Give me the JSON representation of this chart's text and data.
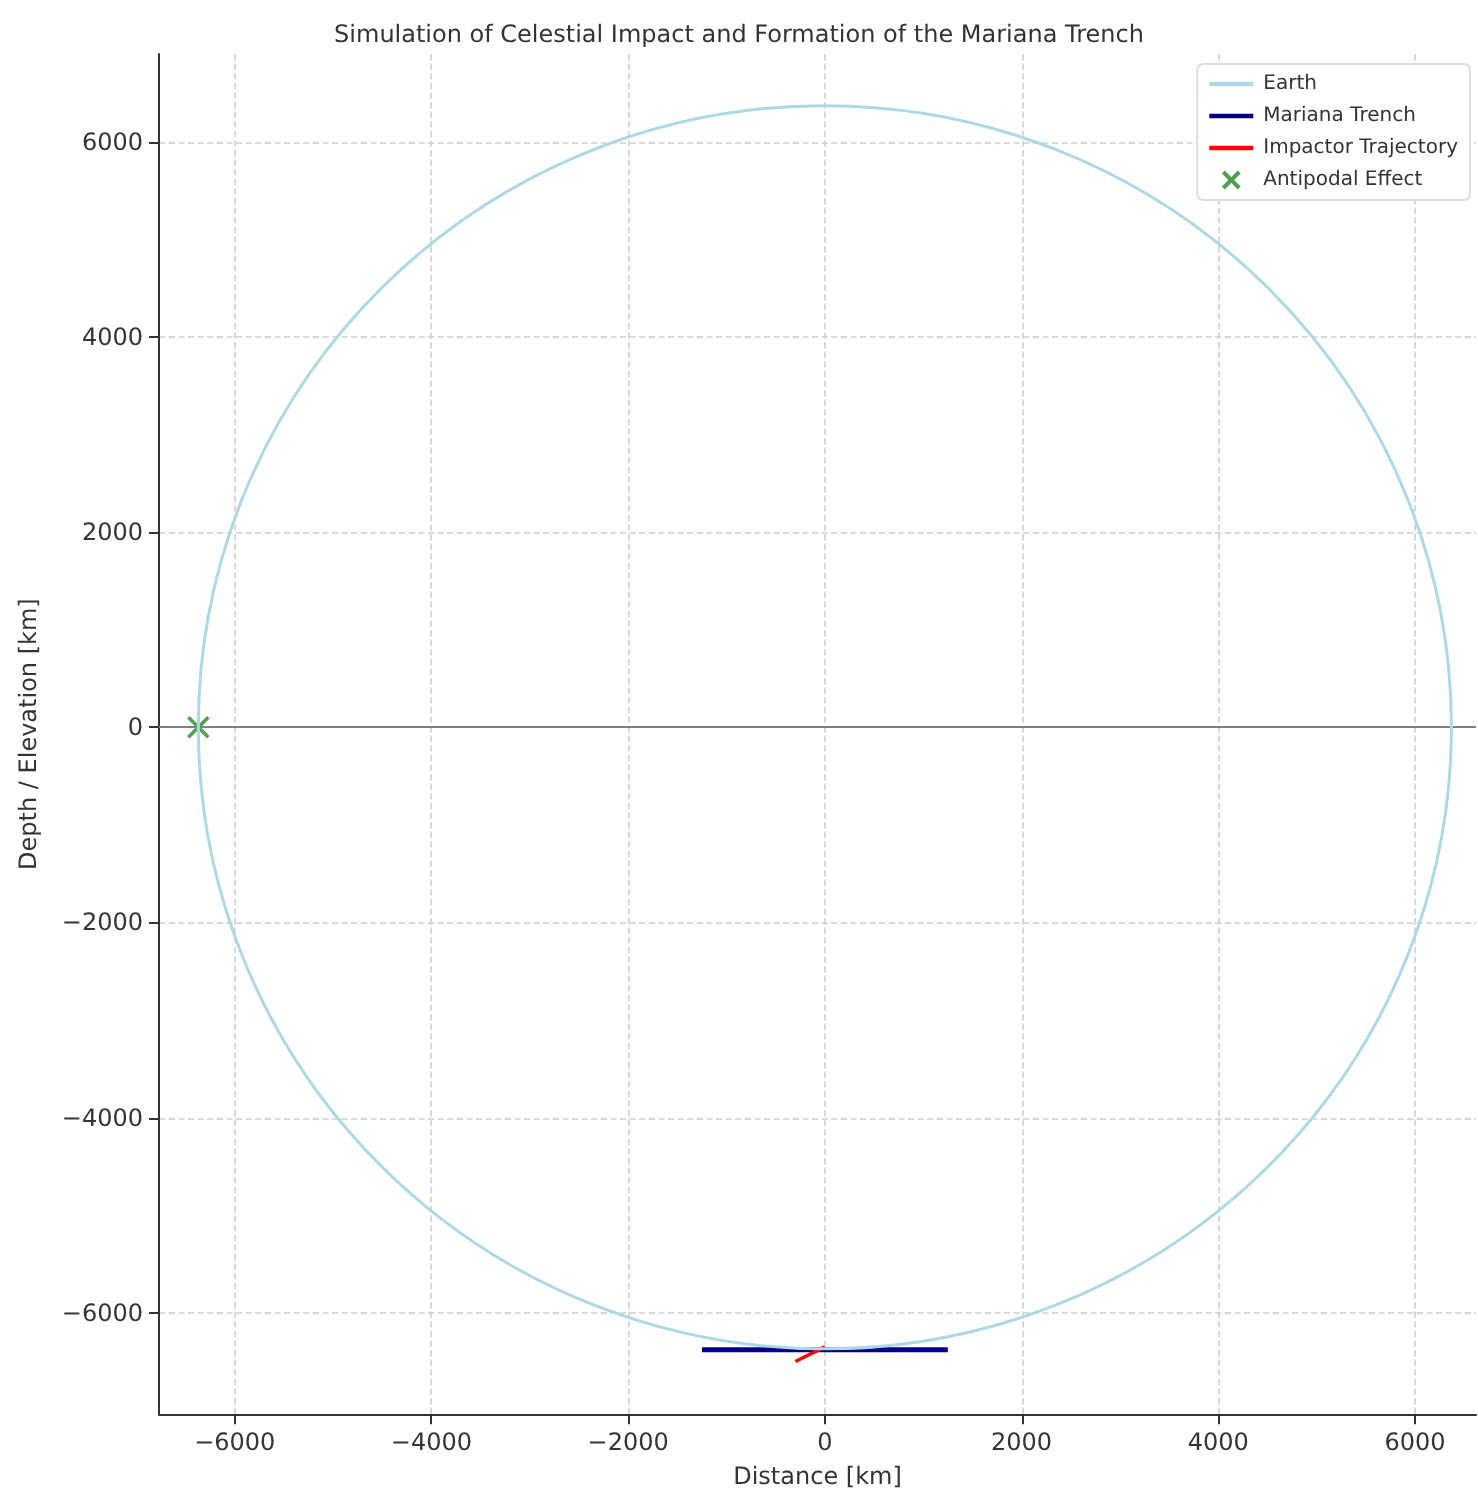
{
  "chart_data": {
    "type": "line",
    "title": "Simulation of Celestial Impact and Formation of the Mariana Trench",
    "xlabel": "Distance [km]",
    "ylabel": "Depth / Elevation [km]",
    "xlim": [
      -6770,
      6620
    ],
    "ylim": [
      -7040,
      6900
    ],
    "xticks": [
      {
        "value": -6000,
        "label": "−6000"
      },
      {
        "value": -4000,
        "label": "−4000"
      },
      {
        "value": -2000,
        "label": "−2000"
      },
      0,
      2000,
      4000,
      6000
    ],
    "yticks": [
      {
        "value": -6000,
        "label": "−6000"
      },
      {
        "value": -4000,
        "label": "−4000"
      },
      {
        "value": -2000,
        "label": "−2000"
      },
      0,
      2000,
      4000,
      6000
    ],
    "grid": true,
    "legend": "top right",
    "ref_lines": [
      {
        "axis": "y",
        "value": 0,
        "color": "#808080"
      }
    ],
    "series": [
      {
        "name": "Earth",
        "color": "#add8e6"
      },
      {
        "name": "Mariana Trench",
        "color": "#00008b",
        "x": [
          -1250,
          1250
        ],
        "values": [
          -6380,
          -6380
        ]
      },
      {
        "name": "Impactor Trajectory",
        "color": "#ff0000",
        "x": [
          -300,
          0
        ],
        "values": [
          -6500,
          -6350
        ]
      },
      {
        "name": "Antipodal Effect",
        "type": "scatter",
        "color": "#228b22",
        "marker": "cross",
        "x": [
          -6370
        ],
        "values": [
          0
        ]
      }
    ]
  }
}
